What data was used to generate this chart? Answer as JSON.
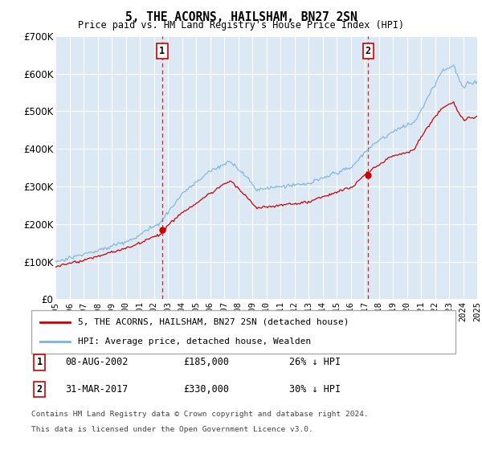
{
  "title": "5, THE ACORNS, HAILSHAM, BN27 2SN",
  "subtitle": "Price paid vs. HM Land Registry's House Price Index (HPI)",
  "ylim": [
    0,
    700000
  ],
  "yticks": [
    0,
    100000,
    200000,
    300000,
    400000,
    500000,
    600000,
    700000
  ],
  "xlim_start": 1995,
  "xlim_end": 2025,
  "xticks": [
    1995,
    1996,
    1997,
    1998,
    1999,
    2000,
    2001,
    2002,
    2003,
    2004,
    2005,
    2006,
    2007,
    2008,
    2009,
    2010,
    2011,
    2012,
    2013,
    2014,
    2015,
    2016,
    2017,
    2018,
    2019,
    2020,
    2021,
    2022,
    2023,
    2024,
    2025
  ],
  "bg_color": "#dce9f5",
  "grid_color": "#ffffff",
  "hpi_color": "#7ab3d9",
  "sale_color": "#cc0000",
  "marker_color": "#cc0000",
  "sale1_t": 2002.58,
  "sale1_price": 185000,
  "sale2_t": 2017.25,
  "sale2_price": 330000,
  "sale1_date": "08-AUG-2002",
  "sale1_price_str": "£185,000",
  "sale1_hpi": "26% ↓ HPI",
  "sale2_date": "31-MAR-2017",
  "sale2_price_str": "£330,000",
  "sale2_hpi": "30% ↓ HPI",
  "legend_label1": "5, THE ACORNS, HAILSHAM, BN27 2SN (detached house)",
  "legend_label2": "HPI: Average price, detached house, Wealden",
  "footnote1": "Contains HM Land Registry data © Crown copyright and database right 2024.",
  "footnote2": "This data is licensed under the Open Government Licence v3.0."
}
